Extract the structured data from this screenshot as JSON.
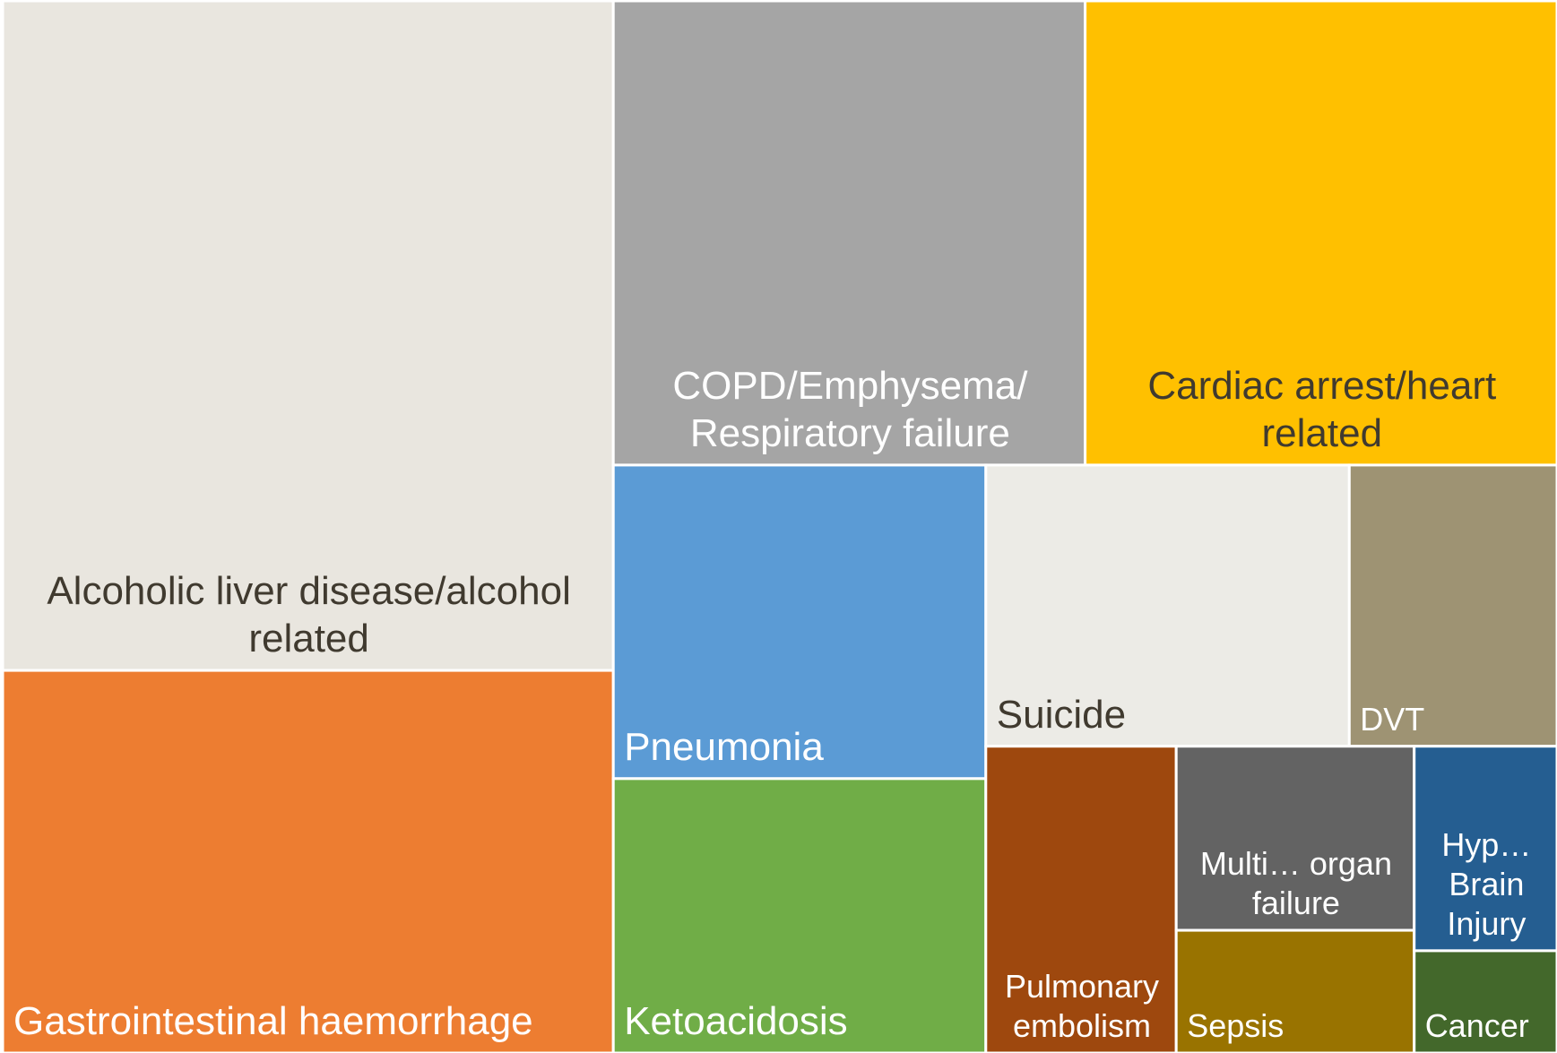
{
  "chart_data": {
    "type": "treemap",
    "categories": [
      "Alcoholic liver disease/alcohol related",
      "Gastrointestinal haemorrhage",
      "COPD/Emphysema/ Respiratory failure",
      "Cardiac arrest/heart related",
      "Pneumonia",
      "Ketoacidosis",
      "Suicide",
      "DVT",
      "Pulmonary embolism",
      "Multi… organ failure",
      "Sepsis",
      "Hyp… Brain Injury",
      "Cancer"
    ],
    "values": [
      28,
      16,
      15,
      15,
      8,
      7,
      7,
      4,
      4,
      3,
      2,
      2,
      1
    ],
    "colors": [
      "#e9e6df",
      "#ed7d31",
      "#a5a5a5",
      "#ffc000",
      "#5b9bd5",
      "#70ad47",
      "#ecebe6",
      "#9e9373",
      "#9e480e",
      "#636363",
      "#997300",
      "#255e91",
      "#43682b"
    ]
  }
}
